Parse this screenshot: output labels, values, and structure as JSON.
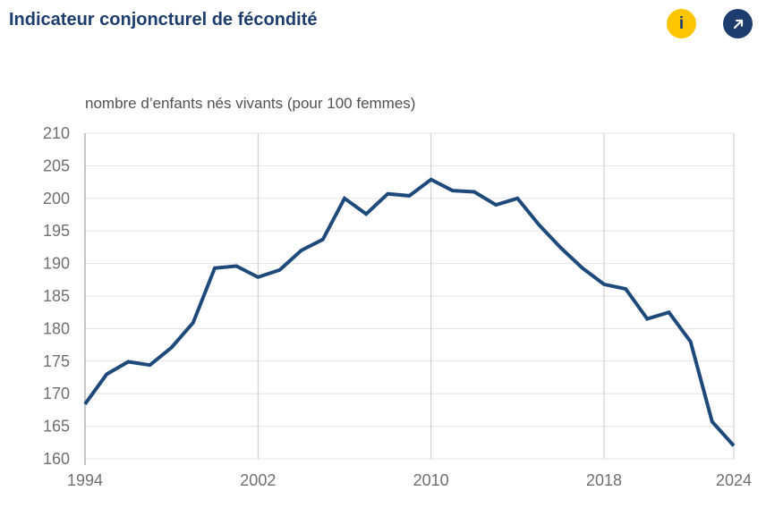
{
  "header": {
    "title": "Indicateur conjoncturel de fécondité",
    "buttons": [
      {
        "name": "info",
        "label": "i"
      },
      {
        "name": "open-external"
      }
    ]
  },
  "colors": {
    "title_navy": "#1d3d6e",
    "line": "#1d4a7a",
    "info_yellow": "#fdc500",
    "grid_horizontal": "#e3e3e3",
    "grid_vertical": "#c9c9c9",
    "axis": "#8f8f8f",
    "tick_label": "#6f6f6f",
    "subtitle_gray": "#515151"
  },
  "chart_data": {
    "type": "line",
    "title": "Indicateur conjoncturel de fécondité",
    "ylabel": "nombre d’enfants nés vivants (pour 100 femmes)",
    "xlabel": "",
    "x": [
      1994,
      1995,
      1996,
      1997,
      1998,
      1999,
      2000,
      2001,
      2002,
      2003,
      2004,
      2005,
      2006,
      2007,
      2008,
      2009,
      2010,
      2011,
      2012,
      2013,
      2014,
      2015,
      2016,
      2017,
      2018,
      2019,
      2020,
      2021,
      2022,
      2023,
      2024
    ],
    "values": [
      168.4,
      173.0,
      174.9,
      174.4,
      177.1,
      180.9,
      189.3,
      189.6,
      187.9,
      189.0,
      192.0,
      193.7,
      200.0,
      197.6,
      200.7,
      200.4,
      202.9,
      201.2,
      201.0,
      199.0,
      200.0,
      195.9,
      192.4,
      189.3,
      186.8,
      186.1,
      181.5,
      182.5,
      178.0,
      165.7,
      162.0
    ],
    "ylim": [
      160,
      210
    ],
    "ytick_step": 5,
    "xticks": [
      1994,
      2002,
      2010,
      2018,
      2024
    ],
    "grid": true,
    "legend_position": "none"
  }
}
